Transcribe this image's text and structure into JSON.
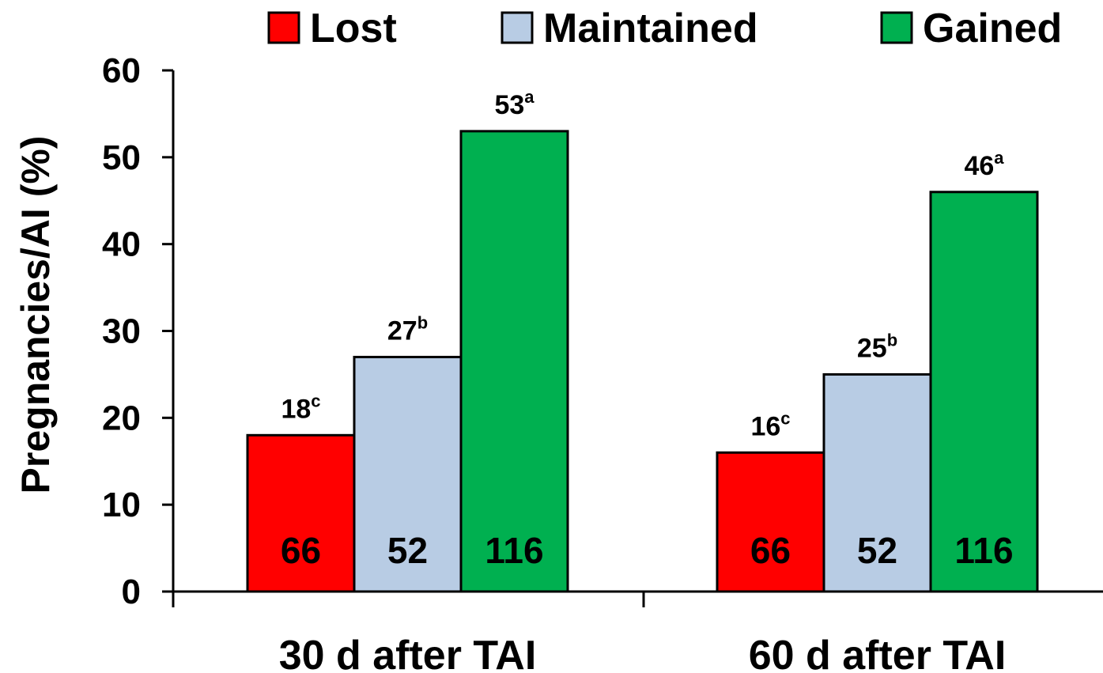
{
  "chart_data": {
    "type": "bar",
    "title": "",
    "xlabel": "",
    "ylabel": "Pregnancies/AI (%)",
    "ylim": [
      0,
      60
    ],
    "yticks": [
      0,
      10,
      20,
      30,
      40,
      50,
      60
    ],
    "grid": false,
    "legend_position": "top",
    "categories": [
      "30 d after TAI",
      "60 d after TAI"
    ],
    "series": [
      {
        "name": "Lost",
        "color": "#ff0000",
        "values": [
          18,
          16
        ],
        "superscripts": [
          "c",
          "c"
        ],
        "n": [
          "66",
          "66"
        ]
      },
      {
        "name": "Maintained",
        "color": "#b8cce4",
        "values": [
          27,
          25
        ],
        "superscripts": [
          "b",
          "b"
        ],
        "n": [
          "52",
          "52"
        ]
      },
      {
        "name": "Gained",
        "color": "#00b050",
        "values": [
          53,
          46
        ],
        "superscripts": [
          "a",
          "a"
        ],
        "n": [
          "116",
          "116"
        ]
      }
    ]
  }
}
